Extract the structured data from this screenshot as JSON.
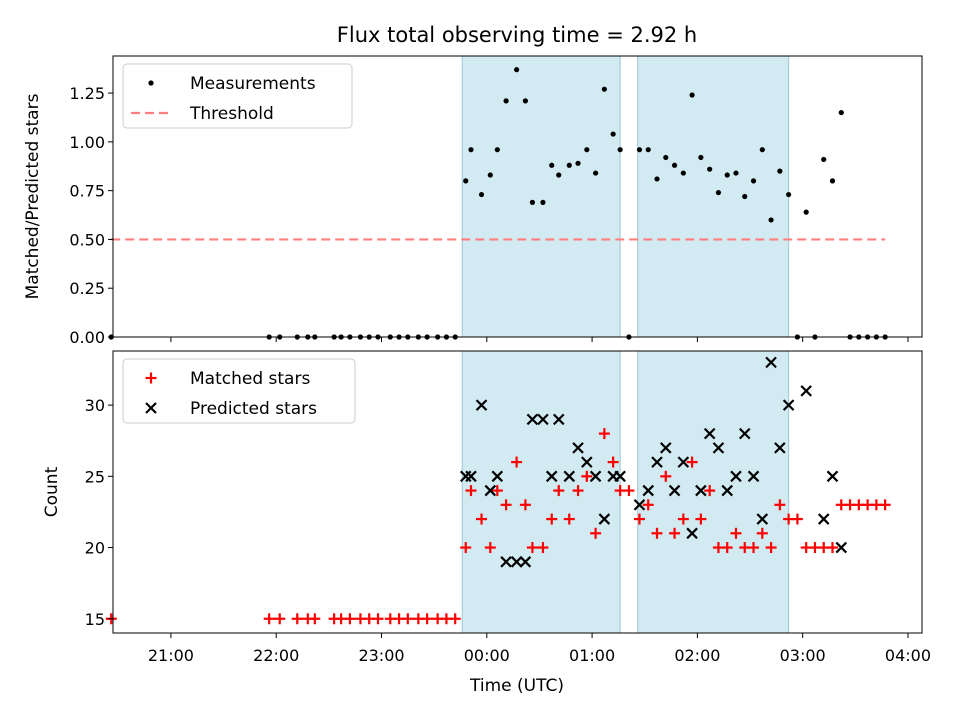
{
  "figure": {
    "title": "Flux total observing time = 2.92 h",
    "xlabel": "Time (UTC)"
  },
  "chart_data": [
    {
      "type": "scatter",
      "ylabel": "Matched/Predicted stars",
      "ylim": [
        0,
        1.44
      ],
      "xlim": [
        "20:27",
        "04:08"
      ],
      "yticks": [
        0.0,
        0.25,
        0.5,
        0.75,
        1.0,
        1.25
      ],
      "ytick_labels": [
        "0.00",
        "0.25",
        "0.50",
        "0.75",
        "1.00",
        "1.25"
      ],
      "legend": {
        "placement": "top-left",
        "entries": [
          "Measurements",
          "Threshold"
        ]
      },
      "shaded_intervals": [
        [
          "23:46",
          "01:16"
        ],
        [
          "01:26",
          "02:52"
        ]
      ],
      "shade_color": "#add8e6",
      "series": [
        {
          "name": "Measurements",
          "style": "dot",
          "color": "#000000",
          "points": [
            [
              "20:26",
              0
            ],
            [
              "21:56",
              0
            ],
            [
              "22:02",
              0
            ],
            [
              "22:12",
              0
            ],
            [
              "22:18",
              0
            ],
            [
              "22:22",
              0
            ],
            [
              "22:33",
              0
            ],
            [
              "22:37",
              0
            ],
            [
              "22:42",
              0
            ],
            [
              "22:48",
              0
            ],
            [
              "22:53",
              0
            ],
            [
              "22:58",
              0
            ],
            [
              "23:05",
              0
            ],
            [
              "23:10",
              0
            ],
            [
              "23:15",
              0
            ],
            [
              "23:21",
              0
            ],
            [
              "23:26",
              0
            ],
            [
              "23:32",
              0
            ],
            [
              "23:37",
              0
            ],
            [
              "23:42",
              0
            ],
            [
              "23:48",
              0.8
            ],
            [
              "23:51",
              0.96
            ],
            [
              "23:57",
              0.73
            ],
            [
              "00:02",
              0.83
            ],
            [
              "00:06",
              0.96
            ],
            [
              "00:11",
              1.21
            ],
            [
              "00:17",
              1.37
            ],
            [
              "00:22",
              1.21
            ],
            [
              "00:26",
              0.69
            ],
            [
              "00:32",
              0.69
            ],
            [
              "00:37",
              0.88
            ],
            [
              "00:41",
              0.83
            ],
            [
              "00:47",
              0.88
            ],
            [
              "00:52",
              0.89
            ],
            [
              "00:57",
              0.96
            ],
            [
              "01:02",
              0.84
            ],
            [
              "01:07",
              1.27
            ],
            [
              "01:12",
              1.04
            ],
            [
              "01:16",
              0.96
            ],
            [
              "01:21",
              0
            ],
            [
              "01:27",
              0.96
            ],
            [
              "01:32",
              0.96
            ],
            [
              "01:37",
              0.81
            ],
            [
              "01:42",
              0.92
            ],
            [
              "01:47",
              0.88
            ],
            [
              "01:52",
              0.84
            ],
            [
              "01:57",
              1.24
            ],
            [
              "02:02",
              0.92
            ],
            [
              "02:07",
              0.86
            ],
            [
              "02:12",
              0.74
            ],
            [
              "02:17",
              0.83
            ],
            [
              "02:22",
              0.84
            ],
            [
              "02:27",
              0.72
            ],
            [
              "02:32",
              0.8
            ],
            [
              "02:37",
              0.96
            ],
            [
              "02:42",
              0.6
            ],
            [
              "02:47",
              0.85
            ],
            [
              "02:52",
              0.73
            ],
            [
              "02:57",
              0
            ],
            [
              "03:02",
              0.64
            ],
            [
              "03:07",
              0
            ],
            [
              "03:12",
              0.91
            ],
            [
              "03:17",
              0.8
            ],
            [
              "03:22",
              1.15
            ],
            [
              "03:27",
              0
            ],
            [
              "03:32",
              0
            ],
            [
              "03:37",
              0
            ],
            [
              "03:42",
              0
            ],
            [
              "03:47",
              0
            ]
          ]
        },
        {
          "name": "Threshold",
          "style": "dashed-line",
          "color": "#ff7f7f",
          "points": [
            [
              "20:26",
              0.5
            ],
            [
              "03:47",
              0.5
            ]
          ]
        }
      ]
    },
    {
      "type": "scatter",
      "ylabel": "Count",
      "ylim": [
        14,
        33.8
      ],
      "xlim": [
        "20:27",
        "04:08"
      ],
      "yticks": [
        15,
        20,
        25,
        30
      ],
      "ytick_labels": [
        "15",
        "20",
        "25",
        "30"
      ],
      "xticks": [
        "21:00",
        "22:00",
        "23:00",
        "00:00",
        "01:00",
        "02:00",
        "03:00",
        "04:00"
      ],
      "xtick_labels": [
        "21:00",
        "22:00",
        "23:00",
        "00:00",
        "01:00",
        "02:00",
        "03:00",
        "04:00"
      ],
      "legend": {
        "placement": "top-left",
        "entries": [
          "Matched stars",
          "Predicted stars"
        ]
      },
      "shaded_intervals": [
        [
          "23:46",
          "01:16"
        ],
        [
          "01:26",
          "02:52"
        ]
      ],
      "shade_color": "#add8e6",
      "series": [
        {
          "name": "Matched stars",
          "style": "plus",
          "color": "#ff0000",
          "points": [
            [
              "20:26",
              15
            ],
            [
              "21:56",
              15
            ],
            [
              "22:02",
              15
            ],
            [
              "22:12",
              15
            ],
            [
              "22:18",
              15
            ],
            [
              "22:22",
              15
            ],
            [
              "22:33",
              15
            ],
            [
              "22:37",
              15
            ],
            [
              "22:42",
              15
            ],
            [
              "22:48",
              15
            ],
            [
              "22:53",
              15
            ],
            [
              "22:58",
              15
            ],
            [
              "23:05",
              15
            ],
            [
              "23:10",
              15
            ],
            [
              "23:15",
              15
            ],
            [
              "23:21",
              15
            ],
            [
              "23:26",
              15
            ],
            [
              "23:32",
              15
            ],
            [
              "23:37",
              15
            ],
            [
              "23:42",
              15
            ],
            [
              "23:48",
              20
            ],
            [
              "23:51",
              24
            ],
            [
              "23:57",
              22
            ],
            [
              "00:02",
              20
            ],
            [
              "00:06",
              24
            ],
            [
              "00:11",
              23
            ],
            [
              "00:17",
              26
            ],
            [
              "00:22",
              23
            ],
            [
              "00:26",
              20
            ],
            [
              "00:32",
              20
            ],
            [
              "00:37",
              22
            ],
            [
              "00:41",
              24
            ],
            [
              "00:47",
              22
            ],
            [
              "00:52",
              24
            ],
            [
              "00:57",
              25
            ],
            [
              "01:02",
              21
            ],
            [
              "01:07",
              28
            ],
            [
              "01:12",
              26
            ],
            [
              "01:16",
              24
            ],
            [
              "01:21",
              24
            ],
            [
              "01:27",
              22
            ],
            [
              "01:32",
              23
            ],
            [
              "01:37",
              21
            ],
            [
              "01:42",
              25
            ],
            [
              "01:47",
              21
            ],
            [
              "01:52",
              22
            ],
            [
              "01:57",
              26
            ],
            [
              "02:02",
              22
            ],
            [
              "02:07",
              24
            ],
            [
              "02:12",
              20
            ],
            [
              "02:17",
              20
            ],
            [
              "02:22",
              21
            ],
            [
              "02:27",
              20
            ],
            [
              "02:32",
              20
            ],
            [
              "02:37",
              21
            ],
            [
              "02:42",
              20
            ],
            [
              "02:47",
              23
            ],
            [
              "02:52",
              22
            ],
            [
              "02:57",
              22
            ],
            [
              "03:02",
              20
            ],
            [
              "03:07",
              20
            ],
            [
              "03:12",
              20
            ],
            [
              "03:17",
              20
            ],
            [
              "03:22",
              23
            ],
            [
              "03:27",
              23
            ],
            [
              "03:32",
              23
            ],
            [
              "03:37",
              23
            ],
            [
              "03:42",
              23
            ],
            [
              "03:47",
              23
            ]
          ]
        },
        {
          "name": "Predicted stars",
          "style": "x",
          "color": "#000000",
          "points": [
            [
              "23:48",
              25
            ],
            [
              "23:51",
              25
            ],
            [
              "23:57",
              30
            ],
            [
              "00:02",
              24
            ],
            [
              "00:06",
              25
            ],
            [
              "00:11",
              19
            ],
            [
              "00:17",
              19
            ],
            [
              "00:22",
              19
            ],
            [
              "00:26",
              29
            ],
            [
              "00:32",
              29
            ],
            [
              "00:37",
              25
            ],
            [
              "00:41",
              29
            ],
            [
              "00:47",
              25
            ],
            [
              "00:52",
              27
            ],
            [
              "00:57",
              26
            ],
            [
              "01:02",
              25
            ],
            [
              "01:07",
              22
            ],
            [
              "01:12",
              25
            ],
            [
              "01:16",
              25
            ],
            [
              "01:27",
              23
            ],
            [
              "01:32",
              24
            ],
            [
              "01:37",
              26
            ],
            [
              "01:42",
              27
            ],
            [
              "01:47",
              24
            ],
            [
              "01:52",
              26
            ],
            [
              "01:57",
              21
            ],
            [
              "02:02",
              24
            ],
            [
              "02:07",
              28
            ],
            [
              "02:12",
              27
            ],
            [
              "02:17",
              24
            ],
            [
              "02:22",
              25
            ],
            [
              "02:27",
              28
            ],
            [
              "02:32",
              25
            ],
            [
              "02:37",
              22
            ],
            [
              "02:42",
              33
            ],
            [
              "02:47",
              27
            ],
            [
              "02:52",
              30
            ],
            [
              "03:02",
              31
            ],
            [
              "03:12",
              22
            ],
            [
              "03:17",
              25
            ],
            [
              "03:22",
              20
            ]
          ]
        }
      ]
    }
  ]
}
